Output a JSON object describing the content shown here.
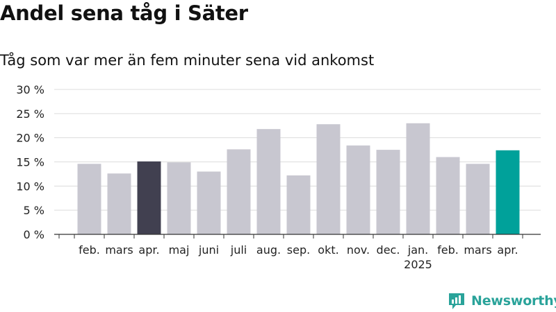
{
  "title": "Andel sena tåg i Säter",
  "subtitle": "Tåg som var mer än fem minuter sena vid ankomst",
  "brand": {
    "name": "Newsworthy",
    "color": "#2aa39a"
  },
  "chart_data": {
    "type": "bar",
    "categories": [
      "feb.",
      "mars",
      "apr.",
      "maj",
      "juni",
      "juli",
      "aug.",
      "sep.",
      "okt.",
      "nov.",
      "dec.",
      "jan.",
      "feb.",
      "mars",
      "apr."
    ],
    "year_labels": [
      "",
      "",
      "",
      "",
      "",
      "",
      "",
      "",
      "",
      "",
      "",
      "2025",
      "",
      "",
      ""
    ],
    "values": [
      14.6,
      12.6,
      15.1,
      14.9,
      13.0,
      17.6,
      21.8,
      12.2,
      22.8,
      18.4,
      17.5,
      23.0,
      16.0,
      14.6,
      17.4
    ],
    "bar_colors": [
      "#c8c7d0",
      "#c8c7d0",
      "#414050",
      "#c8c7d0",
      "#c8c7d0",
      "#c8c7d0",
      "#c8c7d0",
      "#c8c7d0",
      "#c8c7d0",
      "#c8c7d0",
      "#c8c7d0",
      "#c8c7d0",
      "#c8c7d0",
      "#c8c7d0",
      "#00a19a"
    ],
    "yticks": [
      "0 %",
      "5 %",
      "10 %",
      "15 %",
      "20 %",
      "25 %",
      "30 %"
    ],
    "ylim": [
      0,
      30
    ],
    "xlabel": "",
    "ylabel": "",
    "grid": true,
    "legend": "none"
  }
}
